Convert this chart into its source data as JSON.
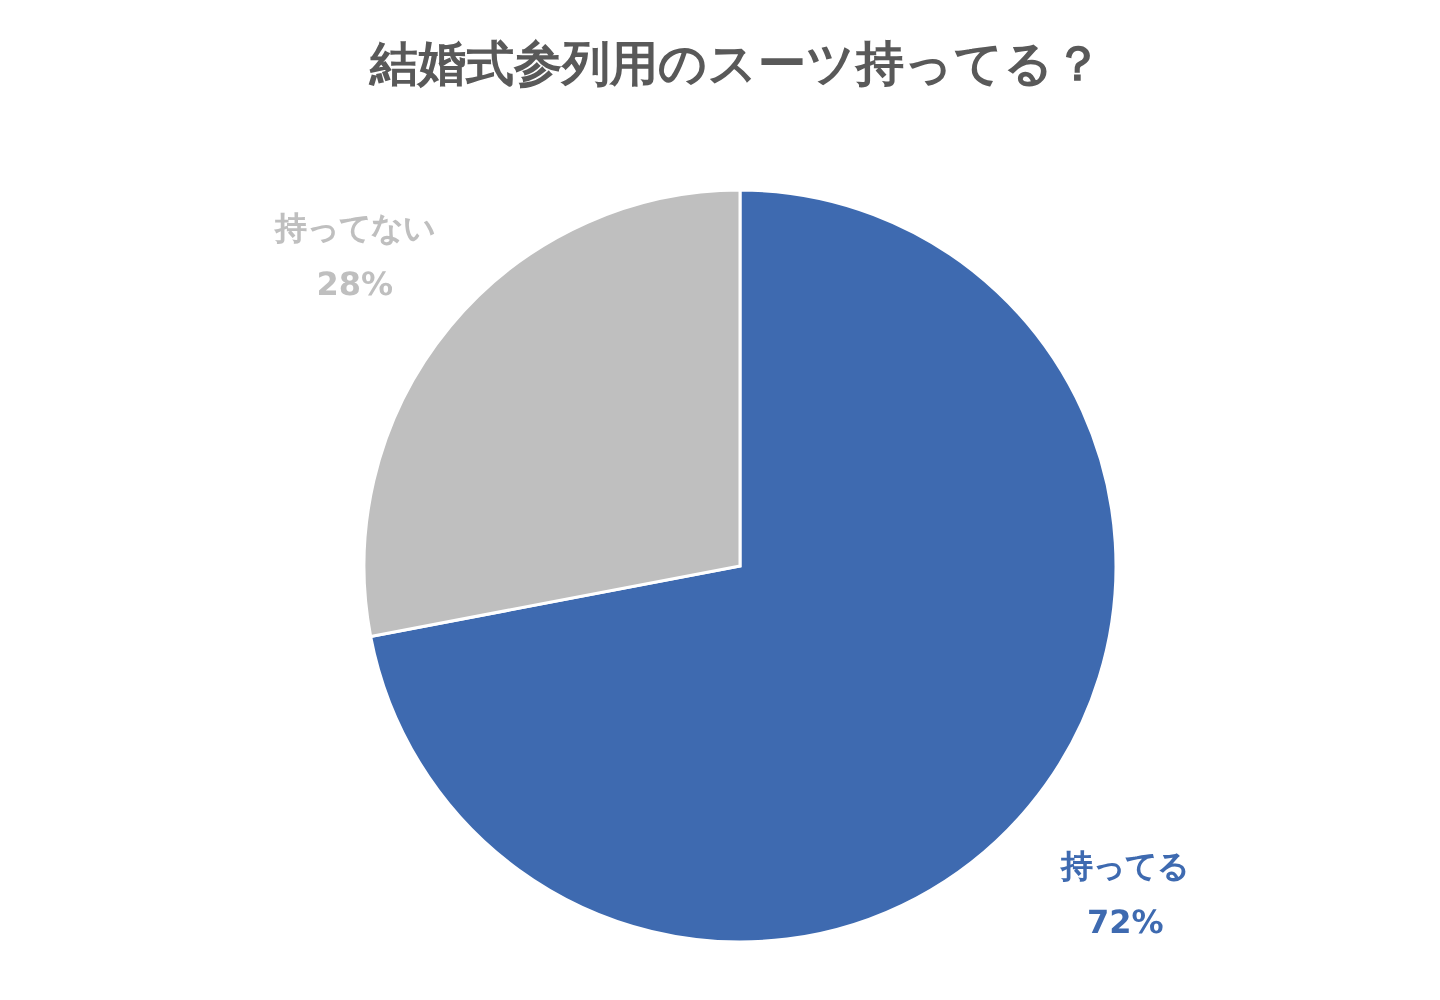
{
  "chart_data": {
    "type": "pie",
    "title": "結婚式参列用のスーツ持ってる？",
    "categories": [
      "持ってる",
      "持ってない"
    ],
    "values": [
      72,
      28
    ],
    "colors": [
      "#3e6ab0",
      "#bfbfbf"
    ],
    "value_labels": [
      "72%",
      "28%"
    ],
    "legend": false
  }
}
